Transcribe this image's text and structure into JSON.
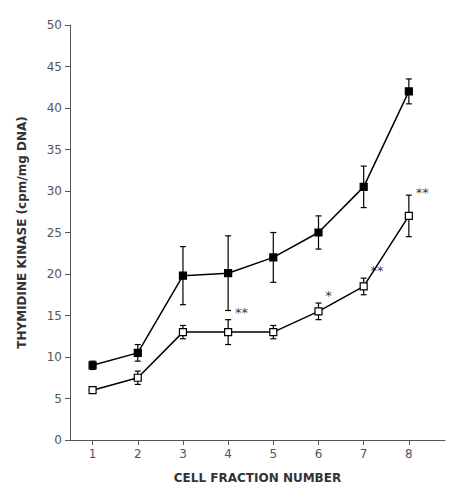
{
  "chart_data": {
    "type": "line",
    "x": [
      1,
      2,
      3,
      4,
      5,
      6,
      7,
      8
    ],
    "series": [
      {
        "color": "#000000",
        "marker": "square",
        "line_style": "solid",
        "values": [
          9.0,
          10.5,
          19.8,
          20.1,
          22.0,
          25.0,
          30.5,
          42.0
        ],
        "errors": [
          0.5,
          1.0,
          3.5,
          4.5,
          3.0,
          2.0,
          2.5,
          1.5
        ]
      },
      {
        "color": "#000000",
        "marker": "open_square",
        "line_style": "solid",
        "values": [
          6.0,
          7.5,
          13.0,
          13.0,
          13.0,
          15.5,
          18.5,
          27.0
        ],
        "errors": [
          0.3,
          0.8,
          0.8,
          1.5,
          0.8,
          1.0,
          1.0,
          2.5
        ]
      }
    ],
    "annotations": [
      {
        "x": 4.15,
        "y": 14.6,
        "text": "**"
      },
      {
        "x": 6.15,
        "y": 16.6,
        "text": "*"
      },
      {
        "x": 7.15,
        "y": 19.6,
        "text": "**"
      },
      {
        "x": 8.15,
        "y": 29.0,
        "text": "**"
      }
    ],
    "xlabel": "CELL FRACTION NUMBER",
    "ylabel": "THYMIDINE KINASE (cpm/mg DNA)",
    "xlim": [
      0.5,
      8.8
    ],
    "xticks": [
      1,
      2,
      3,
      4,
      5,
      6,
      7,
      8
    ],
    "ylim": [
      0,
      50
    ],
    "yticks": [
      0,
      5,
      10,
      15,
      20,
      25,
      30,
      35,
      40,
      45,
      50
    ],
    "grid": false
  }
}
